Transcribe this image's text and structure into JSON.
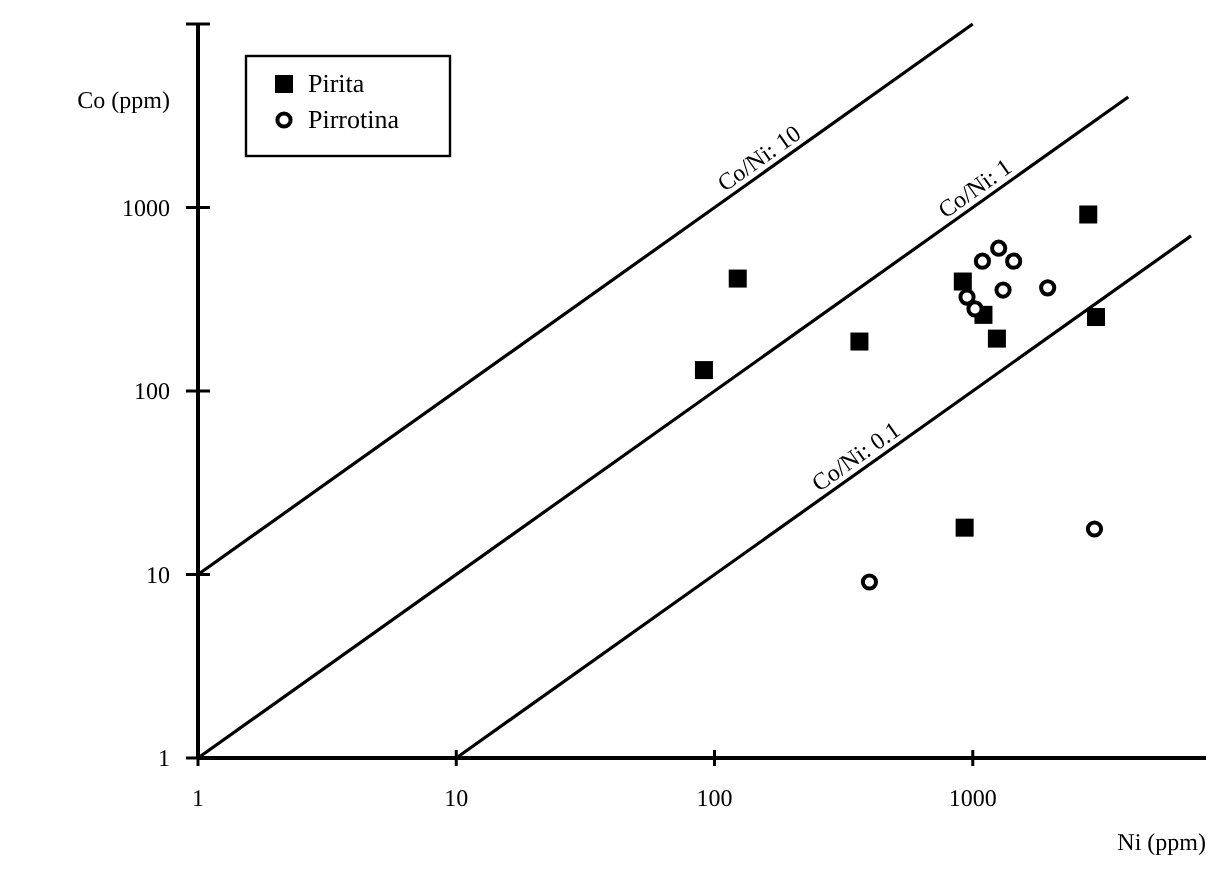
{
  "chart_data": {
    "type": "scatter",
    "xlabel": "Ni (ppm)",
    "ylabel": "Co (ppm)",
    "log": "xy",
    "grid": false,
    "legend": "top left",
    "xlim": [
      1,
      8000
    ],
    "xticks": [
      1,
      10,
      100,
      1000
    ],
    "ylim": [
      1,
      10000
    ],
    "yticks": [
      1,
      10,
      100,
      1000,
      {
        "value": 10000,
        "label": null
      }
    ],
    "series": [
      {
        "name": "Pirita",
        "marker": "square",
        "color": "#000000",
        "x": [
          91,
          123,
          364,
          915,
          1100,
          1240,
          2800,
          3000,
          930
        ],
        "values": [
          130,
          410,
          186,
          395,
          260,
          193,
          916,
          253,
          18
        ]
      },
      {
        "name": "Pirrotina",
        "marker": "circle",
        "color": "#000000",
        "x": [
          398,
          2960,
          1260,
          1090,
          1440,
          1310,
          1950,
          950,
          1020
        ],
        "values": [
          9.1,
          17.7,
          600,
          510,
          510,
          355,
          365,
          325,
          280
        ]
      },
      {
        "name": "Co/Ni: 10",
        "type": "line",
        "line_style": "solid",
        "color": "#000000",
        "x": [
          1,
          1000
        ],
        "values": [
          10,
          10000
        ]
      },
      {
        "name": "Co/Ni: 1",
        "type": "line",
        "line_style": "solid",
        "color": "#000000",
        "x": [
          1,
          4000
        ],
        "values": [
          1,
          4000
        ]
      },
      {
        "name": "Co/Ni: 0.1",
        "type": "line",
        "line_style": "solid",
        "color": "#000000",
        "x": [
          10,
          7000
        ],
        "values": [
          1,
          700
        ]
      }
    ]
  }
}
